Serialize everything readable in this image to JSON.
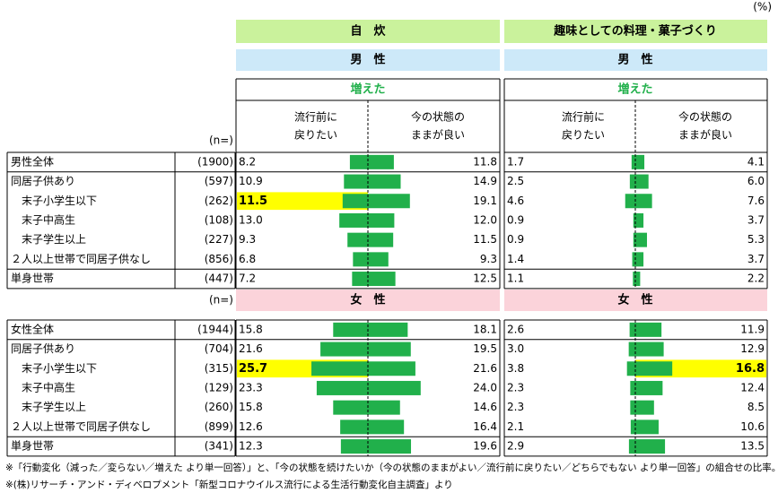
{
  "unit_label": "(%)",
  "panels": [
    "自　炊",
    "趣味としての料理・菓子づくり"
  ],
  "increased_label": "増えた",
  "left_header": [
    "流行前に",
    "戻りたい"
  ],
  "right_header": [
    "今の状態の",
    "ままが良い"
  ],
  "n_header": "(n=)",
  "bar_color": "#21b04b",
  "highlight_color": "#ffff00",
  "groups": [
    {
      "label": "男　性",
      "color": "#cde9f9",
      "rows": [
        {
          "name": "男性全体",
          "n": "(1900)",
          "values": [
            [
              8.2,
              11.8
            ],
            [
              1.7,
              4.1
            ]
          ]
        },
        {
          "name": "同居子供あり",
          "n": "(597)",
          "values": [
            [
              10.9,
              14.9
            ],
            [
              2.5,
              {
                "value": 6,
                "label": "6.0"
              }
            ]
          ]
        },
        {
          "name": "　末子小学生以下",
          "n": "(262)",
          "values": [
            [
              11.5,
              19.1
            ],
            [
              4.6,
              7.6
            ]
          ],
          "highlight": [
            [
              0,
              0
            ]
          ]
        },
        {
          "name": "　末子中高生",
          "n": "(108)",
          "values": [
            [
              {
                "value": 13,
                "label": "13.0"
              },
              {
                "value": 12,
                "label": "12.0"
              }
            ],
            [
              0.9,
              3.7
            ]
          ]
        },
        {
          "name": "　末子学生以上",
          "n": "(227)",
          "values": [
            [
              9.3,
              11.5
            ],
            [
              0.9,
              5.3
            ]
          ]
        },
        {
          "name": "２人以上世帯で同居子供なし",
          "n": "(856)",
          "values": [
            [
              6.8,
              9.3
            ],
            [
              1.4,
              3.7
            ]
          ]
        },
        {
          "name": "単身世帯",
          "n": "(447)",
          "values": [
            [
              7.2,
              12.5
            ],
            [
              1.1,
              2.2
            ]
          ]
        }
      ]
    },
    {
      "label": "女　性",
      "color": "#fbd3da",
      "rows": [
        {
          "name": "女性全体",
          "n": "(1944)",
          "values": [
            [
              15.8,
              18.1
            ],
            [
              2.6,
              11.9
            ]
          ]
        },
        {
          "name": "同居子供あり",
          "n": "(704)",
          "values": [
            [
              21.6,
              19.5
            ],
            [
              {
                "value": 3,
                "label": "3.0"
              },
              12.9
            ]
          ]
        },
        {
          "name": "　末子小学生以下",
          "n": "(315)",
          "values": [
            [
              25.7,
              21.6
            ],
            [
              3.8,
              16.8
            ]
          ],
          "highlight": [
            [
              0,
              0
            ],
            [
              1,
              1
            ]
          ]
        },
        {
          "name": "　末子中高生",
          "n": "(129)",
          "values": [
            [
              23.3,
              {
                "value": 24,
                "label": "24.0"
              }
            ],
            [
              2.3,
              12.4
            ]
          ]
        },
        {
          "name": "　末子学生以上",
          "n": "(260)",
          "values": [
            [
              15.8,
              14.6
            ],
            [
              2.3,
              8.5
            ]
          ]
        },
        {
          "name": "２人以上世帯で同居子供なし",
          "n": "(899)",
          "values": [
            [
              12.6,
              16.4
            ],
            [
              2.1,
              10.6
            ]
          ]
        },
        {
          "name": "単身世帯",
          "n": "(341)",
          "values": [
            [
              12.3,
              19.6
            ],
            [
              2.9,
              13.5
            ]
          ]
        }
      ]
    }
  ],
  "footnotes": [
    "※「行動変化（減った／変らない／増えた より単一回答）」と、「今の状態を続けたいか（今の状態のままがよい／流行前に戻りたい／どちらでもない より単一回答」の組合せの比率。",
    "※(株)リサーチ・アンド・ディベロプメント「新型コロナウイルス流行による生活行動変化自主調査」より"
  ]
}
